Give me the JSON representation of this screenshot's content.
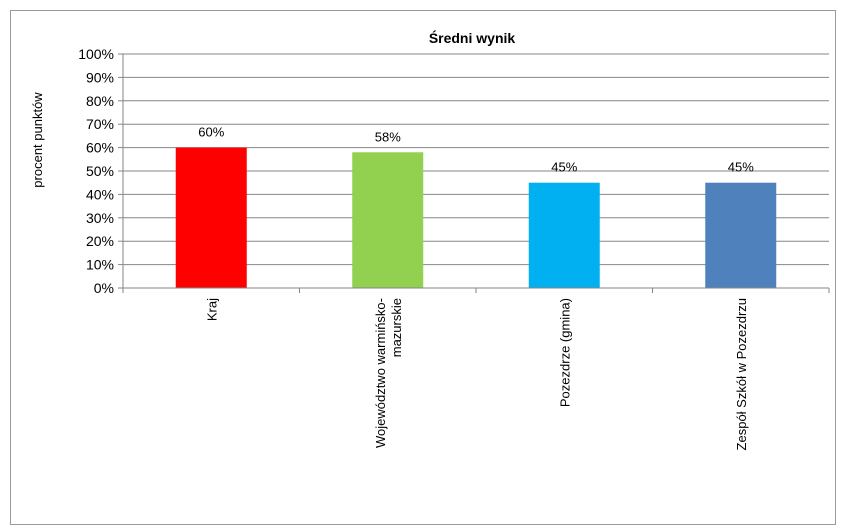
{
  "chart_data": {
    "type": "bar",
    "title": "Średni wynik",
    "ylabel": "procent punktów",
    "xlabel": "",
    "ylim": [
      0,
      100
    ],
    "y_ticks": [
      "0%",
      "10%",
      "20%",
      "30%",
      "40%",
      "50%",
      "60%",
      "70%",
      "80%",
      "90%",
      "100%"
    ],
    "grid": true,
    "categories": [
      [
        "Kraj"
      ],
      [
        "Województwo warmińsko-",
        "mazurskie"
      ],
      [
        "Pozezdrze (gmina)"
      ],
      [
        "Zespół Szkół w Pozezdrzu"
      ]
    ],
    "values": [
      60,
      58,
      45,
      45
    ],
    "data_labels": [
      "60%",
      "58%",
      "45%",
      "45%"
    ],
    "colors": [
      "#ff0000",
      "#92d050",
      "#00b0f0",
      "#4f81bd"
    ]
  }
}
